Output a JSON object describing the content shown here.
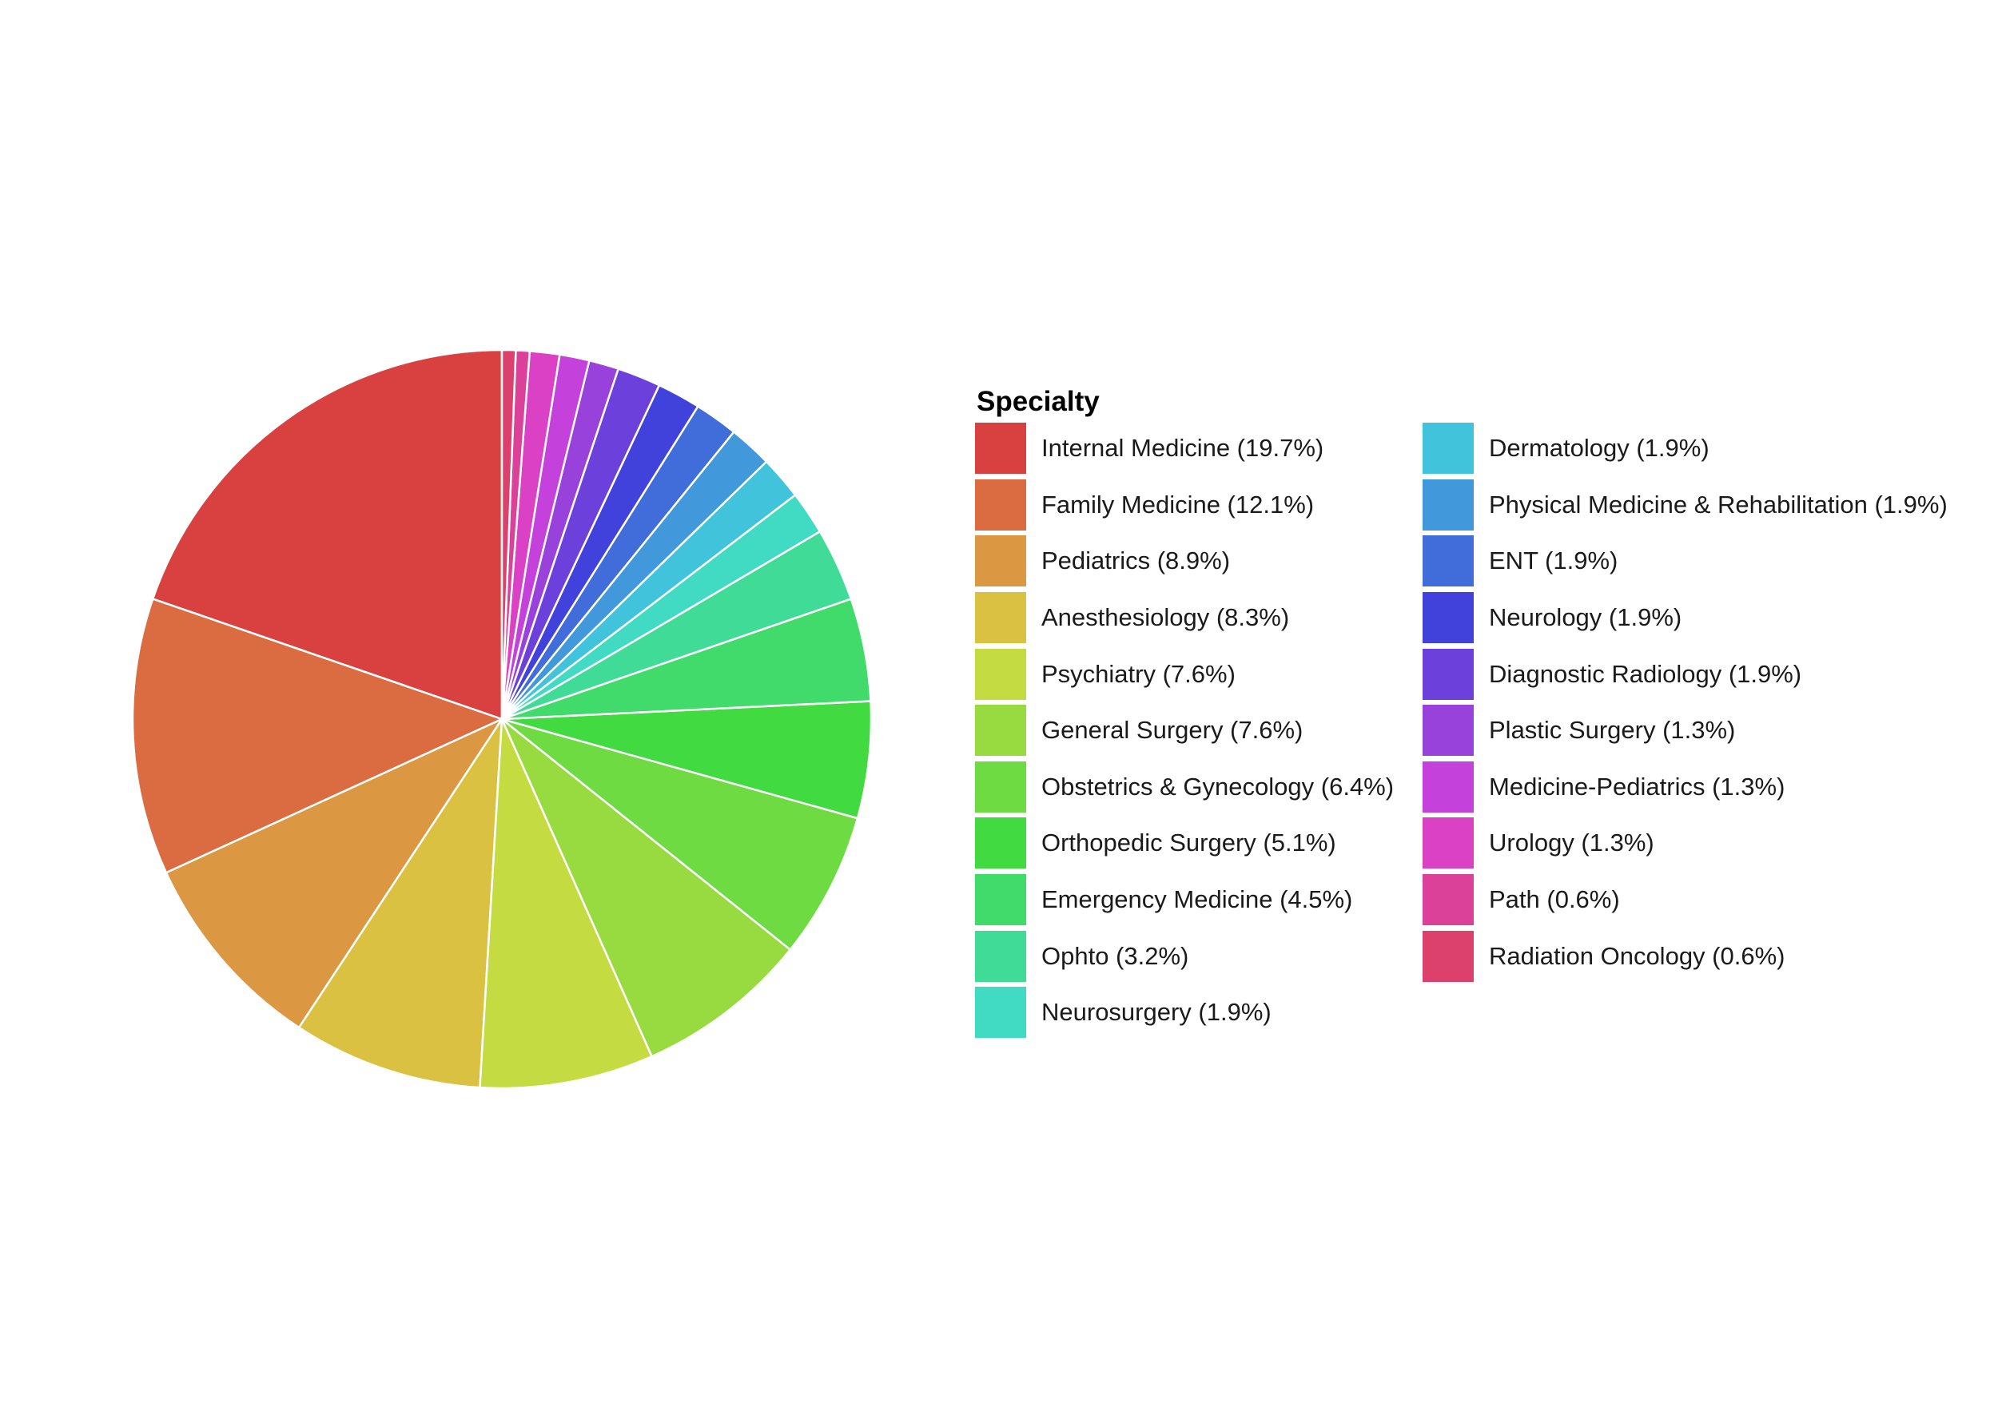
{
  "chart_data": {
    "type": "pie",
    "title": "",
    "legend_title": "Specialty",
    "legend_position": "right",
    "start_angle": "12 o'clock",
    "direction": "counterclockwise",
    "slices": [
      {
        "label": "Internal Medicine (19.7%)",
        "value": 19.7,
        "color": "#d94040"
      },
      {
        "label": "Family Medicine (12.1%)",
        "value": 12.1,
        "color": "#db6c42"
      },
      {
        "label": "Pediatrics (8.9%)",
        "value": 8.9,
        "color": "#db9741"
      },
      {
        "label": "Anesthesiology (8.3%)",
        "value": 8.3,
        "color": "#dbc142"
      },
      {
        "label": "Psychiatry (7.6%)",
        "value": 7.6,
        "color": "#c4db41"
      },
      {
        "label": "General Surgery (7.6%)",
        "value": 7.6,
        "color": "#98db41"
      },
      {
        "label": "Obstetrics & Gynecology (6.4%)",
        "value": 6.4,
        "color": "#6ddb41"
      },
      {
        "label": "Orthopedic Surgery (5.1%)",
        "value": 5.1,
        "color": "#41db41"
      },
      {
        "label": "Emergency Medicine (4.5%)",
        "value": 4.5,
        "color": "#41db6c"
      },
      {
        "label": "Ophto (3.2%)",
        "value": 3.2,
        "color": "#41db98"
      },
      {
        "label": "Neurosurgery (1.9%)",
        "value": 1.9,
        "color": "#41dbc4"
      },
      {
        "label": "Dermatology (1.9%)",
        "value": 1.9,
        "color": "#41c4db"
      },
      {
        "label": "Physical Medicine & Rehabilitation (1.9%)",
        "value": 1.9,
        "color": "#4198db"
      },
      {
        "label": "ENT (1.9%)",
        "value": 1.9,
        "color": "#416ddb"
      },
      {
        "label": "Neurology (1.9%)",
        "value": 1.9,
        "color": "#4141db"
      },
      {
        "label": "Diagnostic Radiology (1.9%)",
        "value": 1.9,
        "color": "#6c41db"
      },
      {
        "label": "Plastic Surgery (1.3%)",
        "value": 1.3,
        "color": "#9841db"
      },
      {
        "label": "Medicine-Pediatrics (1.3%)",
        "value": 1.3,
        "color": "#c441db"
      },
      {
        "label": "Urology (1.3%)",
        "value": 1.3,
        "color": "#db41c4"
      },
      {
        "label": "Path (0.6%)",
        "value": 0.6,
        "color": "#db4198"
      },
      {
        "label": "Radiation Oncology (0.6%)",
        "value": 0.6,
        "color": "#db416c"
      }
    ]
  }
}
